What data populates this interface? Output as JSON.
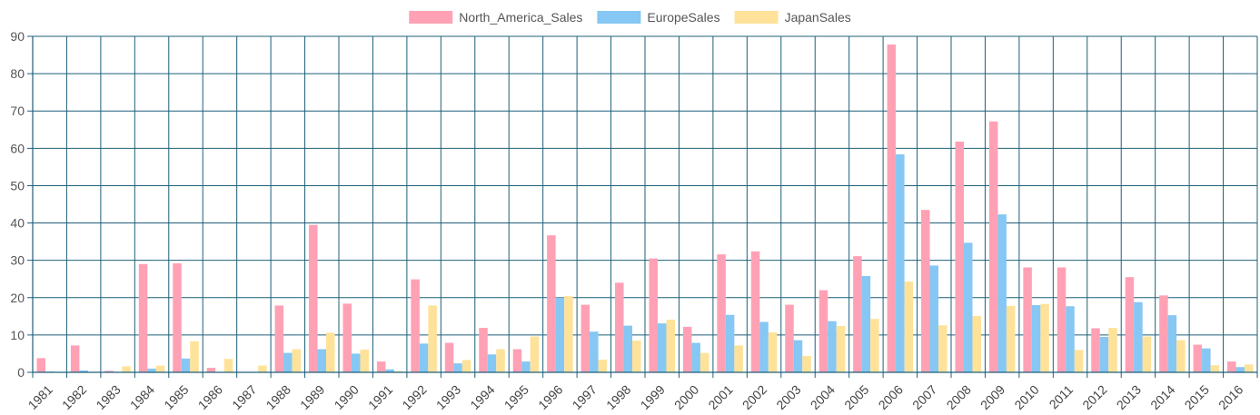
{
  "chart_data": {
    "type": "bar",
    "title": "",
    "xlabel": "",
    "ylabel": "",
    "ylim": [
      0,
      90
    ],
    "y_ticks": [
      0,
      10,
      20,
      30,
      40,
      50,
      60,
      70,
      80,
      90
    ],
    "grid": true,
    "legend_position": "top-center",
    "categories": [
      "1981",
      "1982",
      "1983",
      "1984",
      "1985",
      "1986",
      "1987",
      "1988",
      "1989",
      "1990",
      "1991",
      "1992",
      "1993",
      "1994",
      "1995",
      "1996",
      "1997",
      "1998",
      "1999",
      "2000",
      "2001",
      "2002",
      "2003",
      "2004",
      "2005",
      "2006",
      "2007",
      "2008",
      "2009",
      "2010",
      "2011",
      "2012",
      "2013",
      "2014",
      "2015",
      "2016"
    ],
    "series": [
      {
        "name": "North_America_Sales",
        "color": "#ffa1b5",
        "values": [
          3.8,
          7.2,
          0.4,
          29.0,
          29.2,
          1.2,
          0,
          17.9,
          39.5,
          18.4,
          2.9,
          24.9,
          7.9,
          11.9,
          6.2,
          36.7,
          18.1,
          24.0,
          30.5,
          12.2,
          31.6,
          32.4,
          18.1,
          22.0,
          31.1,
          87.8,
          43.5,
          61.8,
          67.2,
          28.1,
          28.1,
          11.8,
          25.5,
          20.6,
          7.4,
          2.9
        ]
      },
      {
        "name": "EuropeSales",
        "color": "#86c7f3",
        "values": [
          0.2,
          0.5,
          0,
          1.0,
          3.7,
          0,
          0,
          5.2,
          6.2,
          5.0,
          0.8,
          7.7,
          2.4,
          4.8,
          2.9,
          20.0,
          10.9,
          12.5,
          13.1,
          7.9,
          15.4,
          13.5,
          8.6,
          13.7,
          25.8,
          58.4,
          28.6,
          34.7,
          42.3,
          18.0,
          17.7,
          9.5,
          18.8,
          15.3,
          6.4,
          1.4
        ]
      },
      {
        "name": "JapanSales",
        "color": "#ffe29a",
        "values": [
          0,
          0,
          1.6,
          1.8,
          8.3,
          3.6,
          1.8,
          6.2,
          10.6,
          6.1,
          0.3,
          17.9,
          3.3,
          6.2,
          9.6,
          20.4,
          3.4,
          8.5,
          14.1,
          5.2,
          7.2,
          10.7,
          4.4,
          12.4,
          14.3,
          24.3,
          12.6,
          15.1,
          17.8,
          18.3,
          6.0,
          11.9,
          9.6,
          8.6,
          1.9,
          2.1
        ]
      }
    ]
  }
}
